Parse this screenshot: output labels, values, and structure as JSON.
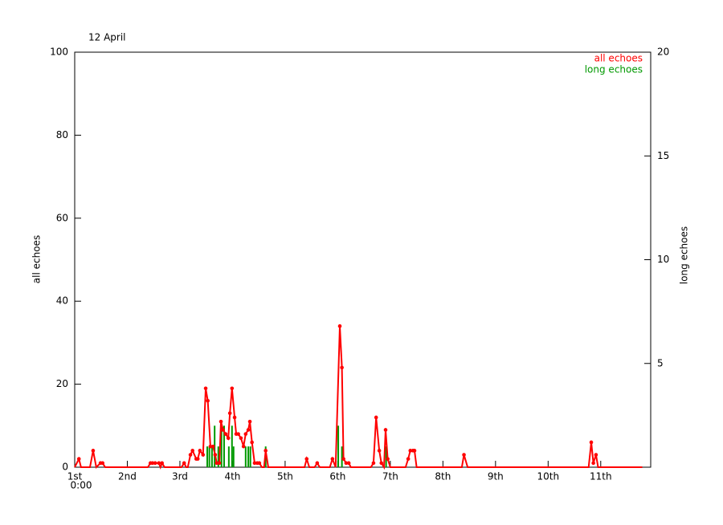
{
  "chart_data": {
    "type": "line",
    "title": "12 April",
    "ylabel": "all echoes",
    "y2label": "long echoes",
    "x_start_label": "0:00",
    "legend": "upper right",
    "xlim": [
      0,
      10.95
    ],
    "xticks": [
      {
        "value": 0,
        "label": "1st"
      },
      {
        "value": 1,
        "label": "2nd"
      },
      {
        "value": 2,
        "label": "3rd"
      },
      {
        "value": 3,
        "label": "4th"
      },
      {
        "value": 4,
        "label": "5th"
      },
      {
        "value": 5,
        "label": "6th"
      },
      {
        "value": 6,
        "label": "7th"
      },
      {
        "value": 7,
        "label": "8th"
      },
      {
        "value": 8,
        "label": "9th"
      },
      {
        "value": 9,
        "label": "10th"
      },
      {
        "value": 10,
        "label": "11th"
      }
    ],
    "ylim": [
      0,
      100
    ],
    "yticks": [
      0,
      20,
      40,
      60,
      80,
      100
    ],
    "y2lim": [
      0,
      20
    ],
    "y2ticks": [
      5,
      10,
      15,
      20
    ],
    "series": [
      {
        "name": "all echoes",
        "color": "#ff0000",
        "x": [
          0,
          0.08,
          0.12,
          0.29,
          0.35,
          0.41,
          0.49,
          0.53,
          0.58,
          1.39,
          1.44,
          1.48,
          1.53,
          1.6,
          1.63,
          1.66,
          1.71,
          2.03,
          2.08,
          2.12,
          2.15,
          2.2,
          2.24,
          2.31,
          2.34,
          2.38,
          2.44,
          2.49,
          2.53,
          2.58,
          2.63,
          2.67,
          2.7,
          2.75,
          2.78,
          2.82,
          2.87,
          2.92,
          2.95,
          2.99,
          3.04,
          3.07,
          3.11,
          3.16,
          3.21,
          3.25,
          3.3,
          3.33,
          3.37,
          3.42,
          3.47,
          3.51,
          3.56,
          3.6,
          3.63,
          3.68,
          4.37,
          4.41,
          4.46,
          4.56,
          4.61,
          4.66,
          4.85,
          4.9,
          4.96,
          5.04,
          5.08,
          5.11,
          5.16,
          5.21,
          5.25,
          5.63,
          5.68,
          5.73,
          5.79,
          5.83,
          5.88,
          5.91,
          5.95,
          6.0,
          6.29,
          6.34,
          6.38,
          6.43,
          6.46,
          6.5,
          7.36,
          7.4,
          7.47,
          9.77,
          9.82,
          9.86,
          9.91,
          9.95,
          10.79
        ],
        "values": [
          0,
          2,
          0,
          0,
          4,
          0,
          1,
          1,
          0,
          0,
          1,
          1,
          1,
          1,
          0,
          1,
          0,
          0,
          1,
          0,
          0,
          3,
          4,
          2,
          2,
          4,
          3,
          19,
          16,
          5,
          5,
          3,
          1,
          1,
          11,
          9,
          8,
          7,
          13,
          19,
          12,
          8,
          8,
          7,
          5,
          8,
          9,
          11,
          6,
          1,
          1,
          1,
          0,
          0,
          4,
          0,
          0,
          2,
          0,
          0,
          1,
          0,
          0,
          2,
          0,
          34,
          24,
          2,
          1,
          1,
          0,
          0,
          1,
          12,
          4,
          1,
          0,
          9,
          2,
          0,
          0,
          2,
          4,
          4,
          4,
          0,
          0,
          3,
          0,
          0,
          6,
          1,
          3,
          0,
          0
        ]
      },
      {
        "name": "long echoes",
        "color": "#009900",
        "axis": "y2",
        "type": "bar",
        "x": [
          2.52,
          2.56,
          2.61,
          2.66,
          2.73,
          2.79,
          2.84,
          2.93,
          2.99,
          3.02,
          3.25,
          3.3,
          3.34,
          3.63,
          5.01,
          5.08,
          5.92
        ],
        "values": [
          1,
          1,
          1,
          2,
          1,
          2,
          2,
          1,
          2,
          1,
          1,
          1,
          1,
          1,
          2,
          1,
          1
        ]
      }
    ]
  }
}
